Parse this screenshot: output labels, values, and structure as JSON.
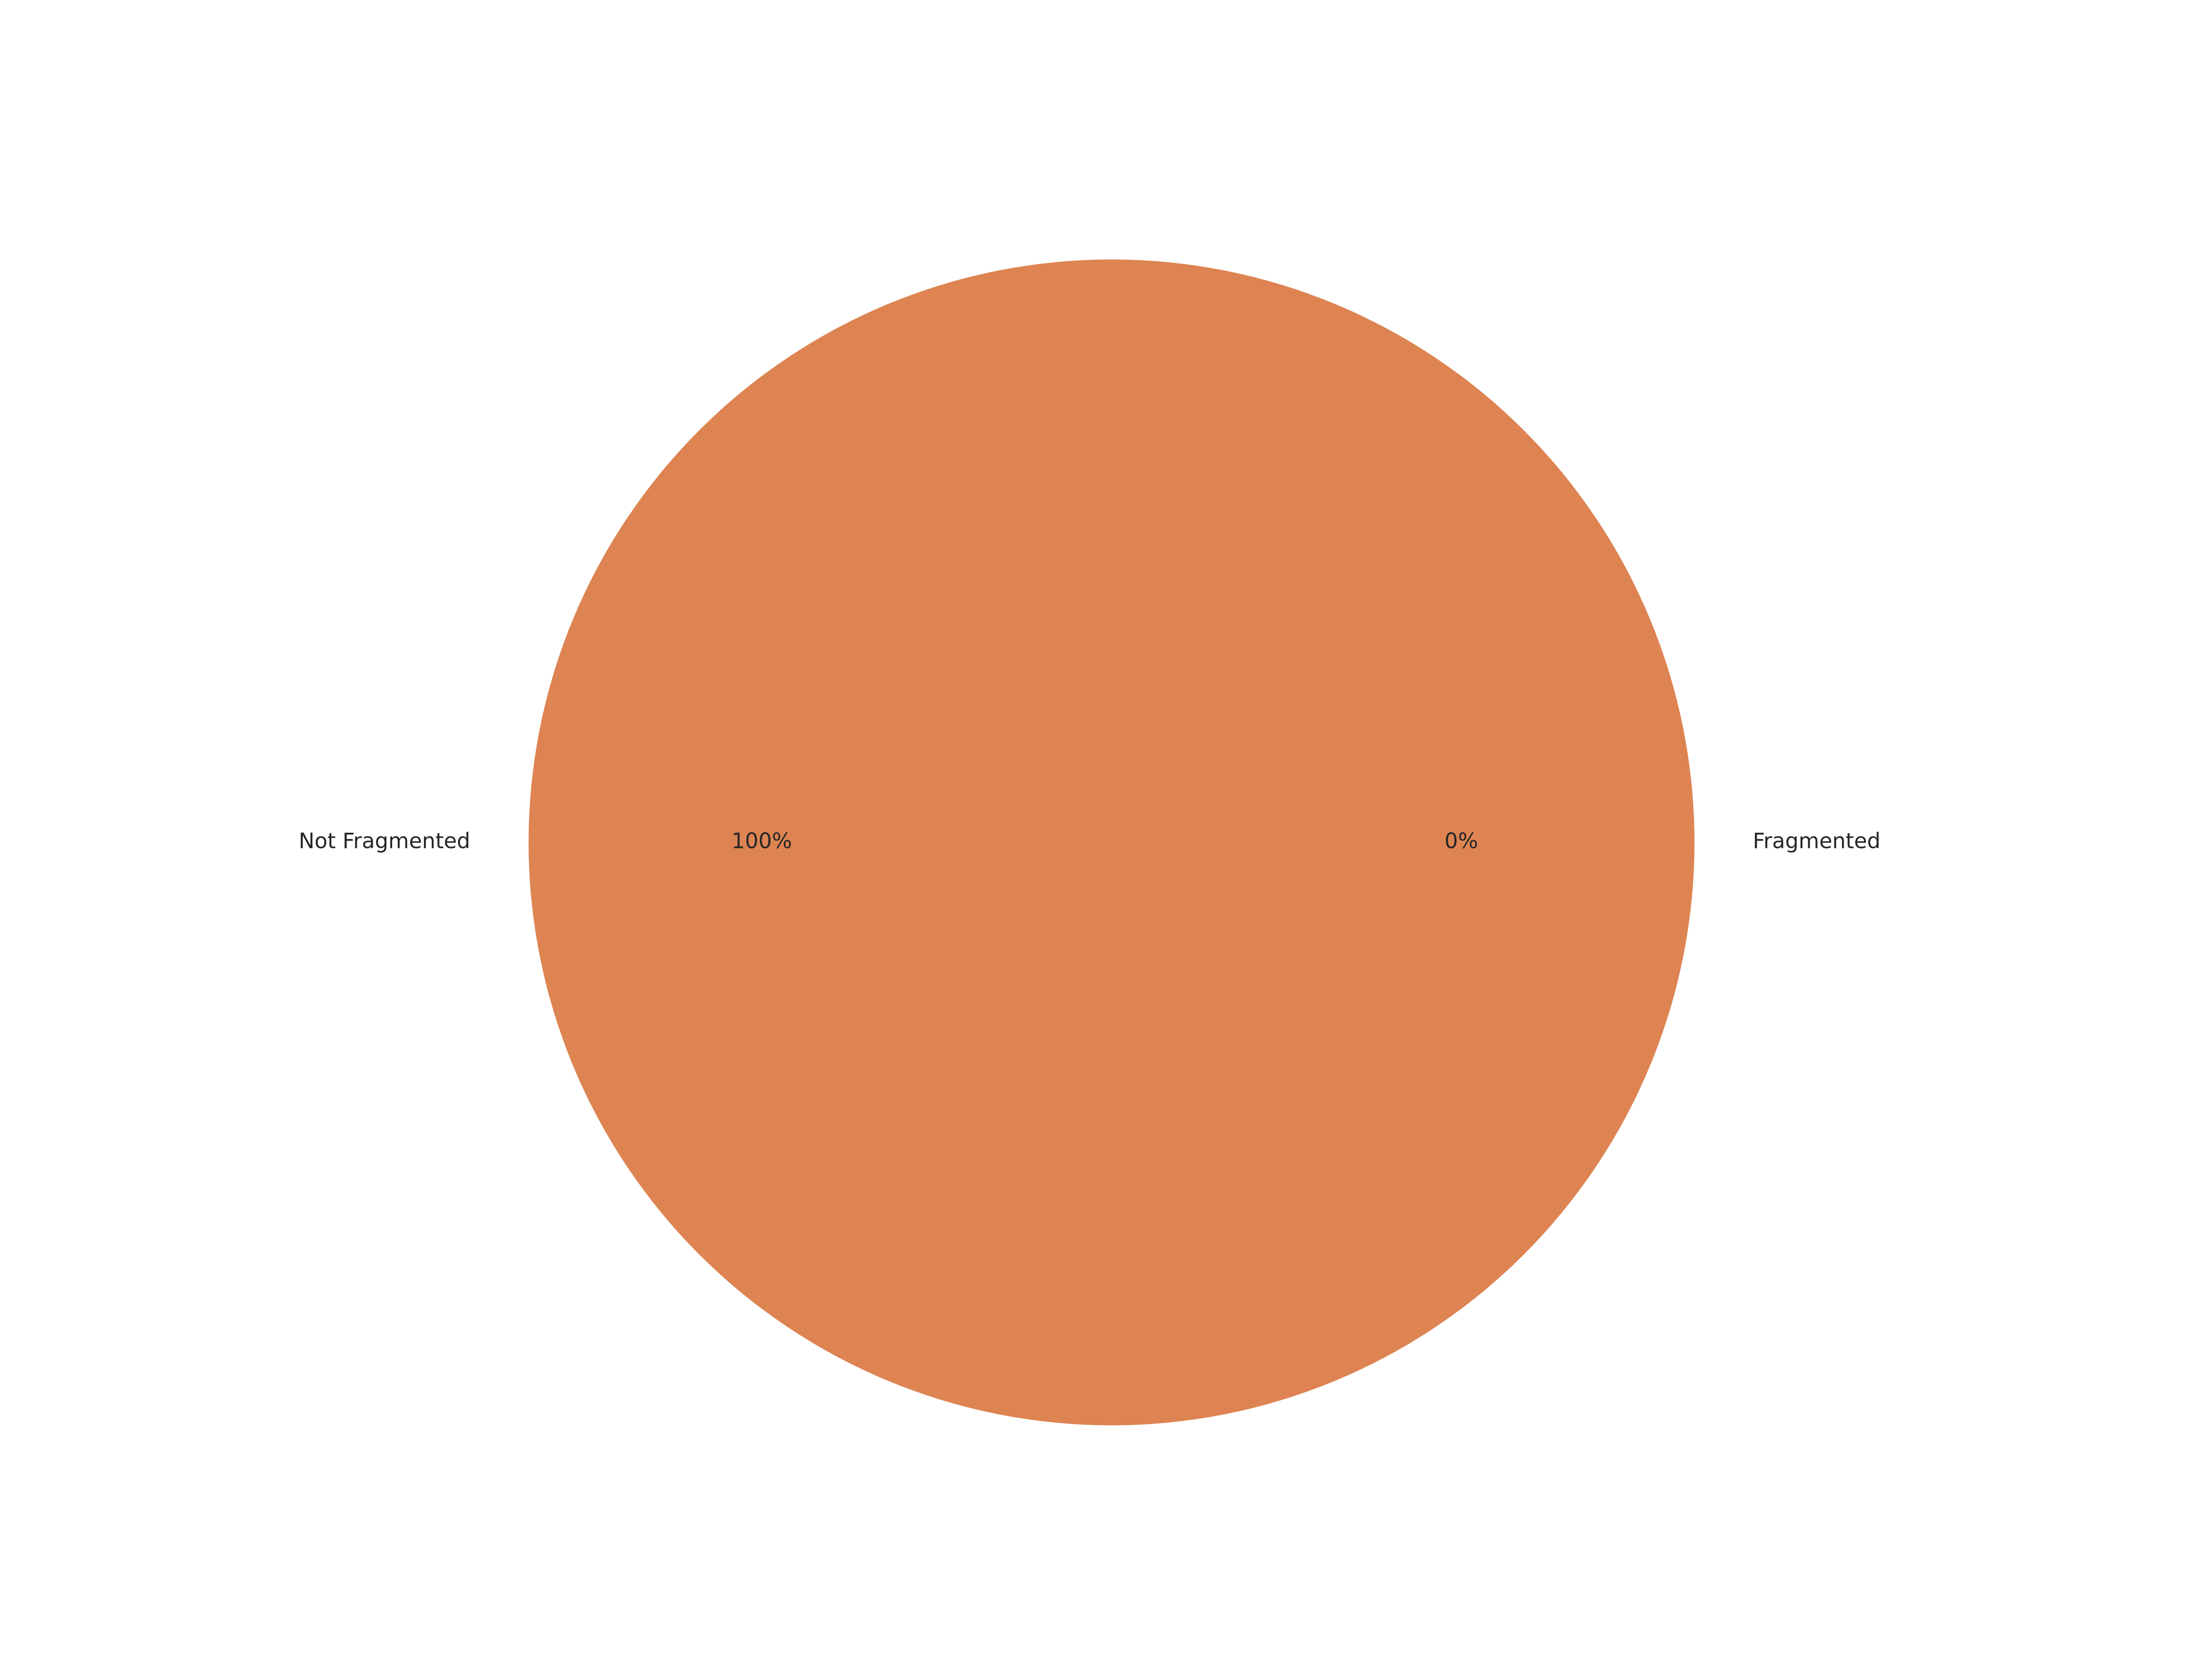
{
  "chart_data": {
    "type": "pie",
    "title": "",
    "slices": [
      {
        "label": "Fragmented",
        "value": 0,
        "pct_label": "0%",
        "color": "#4c72b0"
      },
      {
        "label": "Not Fragmented",
        "value": 100,
        "pct_label": "100%",
        "color": "#dd8452"
      }
    ],
    "legend": "none",
    "start_angle_deg": 0,
    "direction": "counterclockwise"
  }
}
